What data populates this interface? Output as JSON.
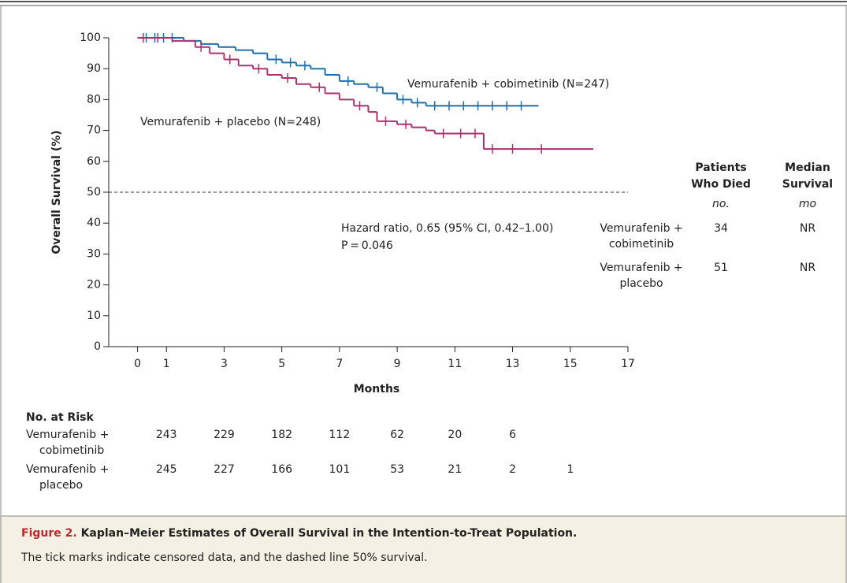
{
  "chart_data": {
    "type": "step",
    "x_label": "Months",
    "y_label": "Overall Survival (%)",
    "xlim": [
      -1,
      17
    ],
    "xticks": [
      0,
      1,
      3,
      5,
      7,
      9,
      11,
      13,
      15,
      17
    ],
    "ylim": [
      0,
      100
    ],
    "yticks": [
      0,
      10,
      20,
      30,
      40,
      50,
      60,
      70,
      80,
      90,
      100
    ],
    "reference_line": 50,
    "series": [
      {
        "name": "Vemurafenib + cobimetinib (N=247)",
        "color": "#1f6fae",
        "x": [
          0,
          1.6,
          2.2,
          2.8,
          3.4,
          4,
          4.5,
          5,
          5.5,
          6,
          6.5,
          7,
          7.5,
          8,
          8.5,
          9,
          9.5,
          10,
          13.9
        ],
        "values": [
          100,
          99,
          98,
          97,
          96,
          95,
          93,
          92,
          91,
          90,
          88,
          86,
          85,
          84,
          82,
          80,
          79,
          78,
          78
        ],
        "censored": {
          "x": [
            0.3,
            0.6,
            0.9,
            1.2,
            4.8,
            5.3,
            5.8,
            7.3,
            8.3,
            9.2,
            9.7,
            10.3,
            10.8,
            11.3,
            11.8,
            12.3,
            12.8,
            13.3
          ],
          "y": [
            100,
            100,
            100,
            100,
            93,
            92,
            91,
            86,
            84,
            80,
            79,
            78,
            78,
            78,
            78,
            78,
            78,
            78
          ]
        }
      },
      {
        "name": "Vemurafenib + placebo (N=248)",
        "color": "#a8336e",
        "x": [
          0,
          1.2,
          2,
          2.5,
          3,
          3.5,
          4,
          4.5,
          5,
          5.5,
          6,
          6.5,
          7,
          7.5,
          8,
          8.3,
          9,
          9.5,
          10,
          10.3,
          12,
          15.8
        ],
        "values": [
          100,
          99,
          97,
          95,
          93,
          91,
          90,
          88,
          87,
          85,
          84,
          82,
          80,
          78,
          76,
          73,
          72,
          71,
          70,
          69,
          64,
          64
        ],
        "censored": {
          "x": [
            0.2,
            0.7,
            2.2,
            3.2,
            4.2,
            5.2,
            6.3,
            7.7,
            8.6,
            9.3,
            10.6,
            11.2,
            11.7,
            12.3,
            13,
            14
          ],
          "y": [
            100,
            100,
            97,
            93,
            90,
            87,
            84,
            78,
            73,
            72,
            69,
            69,
            69,
            64,
            64,
            64
          ]
        }
      }
    ],
    "annotations": [
      "Hazard ratio, 0.65 (95% CI, 0.42–1.00)",
      "P = 0.046"
    ]
  },
  "summary_table": {
    "headers": [
      [
        "Patients",
        "Who Died",
        "no."
      ],
      [
        "Median",
        "Survival",
        "mo"
      ]
    ],
    "rows": [
      {
        "label": [
          "Vemurafenib +",
          "cobimetinib"
        ],
        "cells": [
          "34",
          "NR"
        ]
      },
      {
        "label": [
          "Vemurafenib +",
          "placebo"
        ],
        "cells": [
          "51",
          "NR"
        ]
      }
    ]
  },
  "risk_table": {
    "title": "No. at Risk",
    "rows": [
      {
        "label": [
          "Vemurafenib +",
          "cobimetinib"
        ],
        "values": [
          243,
          229,
          182,
          112,
          62,
          20,
          6
        ]
      },
      {
        "label": [
          "Vemurafenib +",
          "placebo"
        ],
        "values": [
          245,
          227,
          166,
          101,
          53,
          21,
          2,
          1
        ]
      }
    ]
  },
  "caption": {
    "figure": "Figure 2.",
    "title": "Kaplan–Meier Estimates of Overall Survival in the Intention-to-Treat Population.",
    "text": "The tick marks indicate censored data, and the dashed line 50% survival."
  }
}
